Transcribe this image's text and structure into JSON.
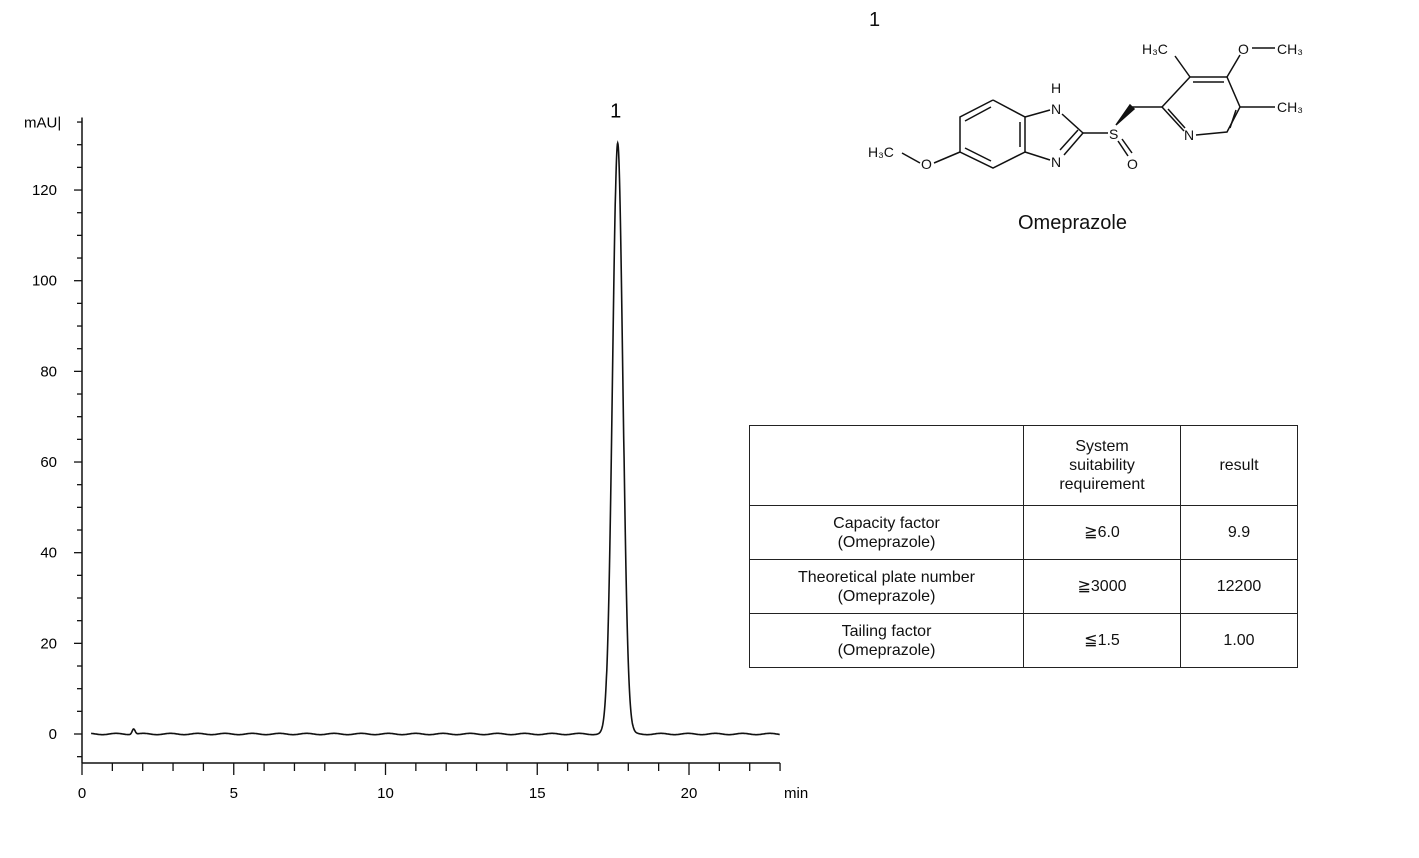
{
  "chart_data": {
    "type": "line",
    "ylabel": "mAU",
    "xlabel": "min",
    "xlim": [
      0,
      23
    ],
    "ylim": [
      -6.4,
      136
    ],
    "xticks": [
      0,
      5,
      10,
      15,
      20
    ],
    "yticks": [
      0,
      20,
      40,
      60,
      80,
      100,
      120
    ],
    "x_minor_step": 1,
    "y_minor_step": 5,
    "grid": false,
    "line_color": "#111111",
    "baseline_mAU": 0,
    "peaks": [
      {
        "label": "1",
        "retention_min": 17.65,
        "height_mAU": 130.5,
        "sigma_min": 0.17
      },
      {
        "label": "",
        "retention_min": 1.7,
        "height_mAU": 1.2,
        "sigma_min": 0.05
      }
    ]
  },
  "compound": {
    "number": "1",
    "name": "Omeprazole",
    "atoms": {
      "h": "H",
      "n1": "N",
      "n2": "N",
      "s": "S",
      "o_s": "O",
      "n_py": "N",
      "o_me": "O",
      "h3c_left": "H₃C",
      "h3c_top": "H₃C",
      "o_top": "O",
      "ch3_top": "CH₃",
      "ch3_right": "CH₃"
    }
  },
  "table": {
    "header": [
      "",
      "System suitability requirement",
      "result"
    ],
    "rows": [
      {
        "param": "Capacity factor",
        "sub": "(Omeprazole)",
        "req": "≧6.0",
        "result": "9.9"
      },
      {
        "param": "Theoretical plate number",
        "sub": "(Omeprazole)",
        "req": "≧3000",
        "result": "12200"
      },
      {
        "param": "Tailing factor",
        "sub": "(Omeprazole)",
        "req": "≦1.5",
        "result": "1.00"
      }
    ]
  }
}
